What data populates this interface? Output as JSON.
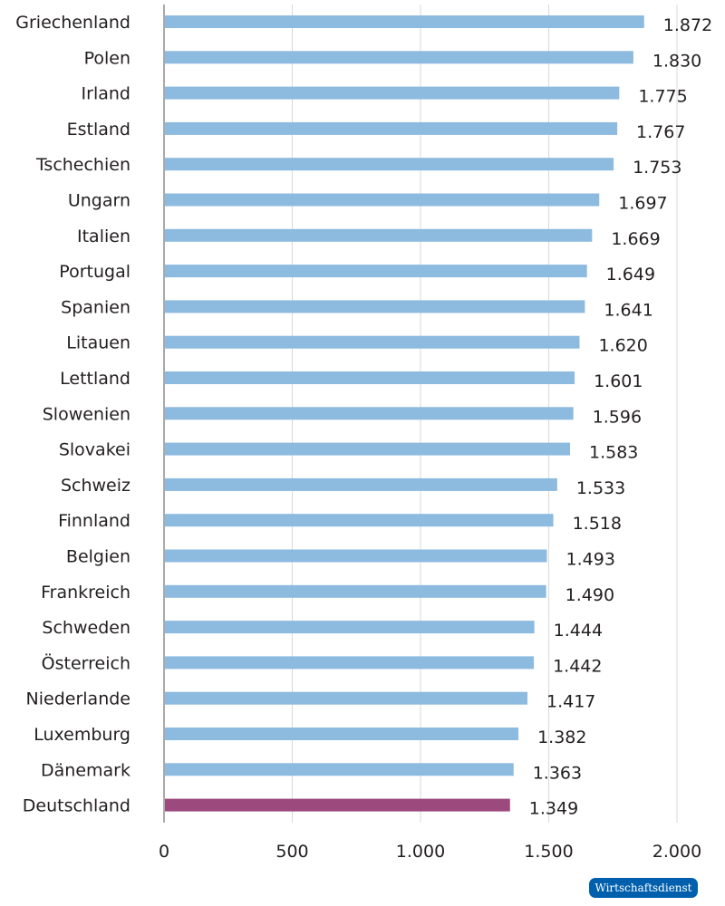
{
  "chart_data": {
    "type": "bar",
    "orientation": "horizontal",
    "categories": [
      "Griechenland",
      "Polen",
      "Irland",
      "Estland",
      "Tschechien",
      "Ungarn",
      "Italien",
      "Portugal",
      "Spanien",
      "Litauen",
      "Lettland",
      "Slowenien",
      "Slovakei",
      "Schweiz",
      "Finnland",
      "Belgien",
      "Frankreich",
      "Schweden",
      "Österreich",
      "Niederlande",
      "Luxemburg",
      "Dänemark",
      "Deutschland"
    ],
    "values": [
      1872,
      1830,
      1775,
      1767,
      1753,
      1697,
      1669,
      1649,
      1641,
      1620,
      1601,
      1596,
      1583,
      1533,
      1518,
      1493,
      1490,
      1444,
      1442,
      1417,
      1382,
      1363,
      1349
    ],
    "value_labels": [
      "1.872",
      "1.830",
      "1.775",
      "1.767",
      "1.753",
      "1.697",
      "1.669",
      "1.649",
      "1.641",
      "1.620",
      "1.601",
      "1.596",
      "1.583",
      "1.533",
      "1.518",
      "1.493",
      "1.490",
      "1.444",
      "1.442",
      "1.417",
      "1.382",
      "1.363",
      "1.349"
    ],
    "xlim": [
      0,
      2000
    ],
    "xticks": [
      0,
      500,
      1000,
      1500,
      2000
    ],
    "xtick_labels": [
      "0",
      "500",
      "1.000",
      "1.500",
      "2.000"
    ],
    "grid": "vertical",
    "colors": {
      "default": "#8dbadf",
      "highlight": "#9c4a7d",
      "highlight_category": "Deutschland"
    }
  },
  "logo": {
    "text": "Wirtschaftsdienst",
    "color": "#0060ad"
  }
}
